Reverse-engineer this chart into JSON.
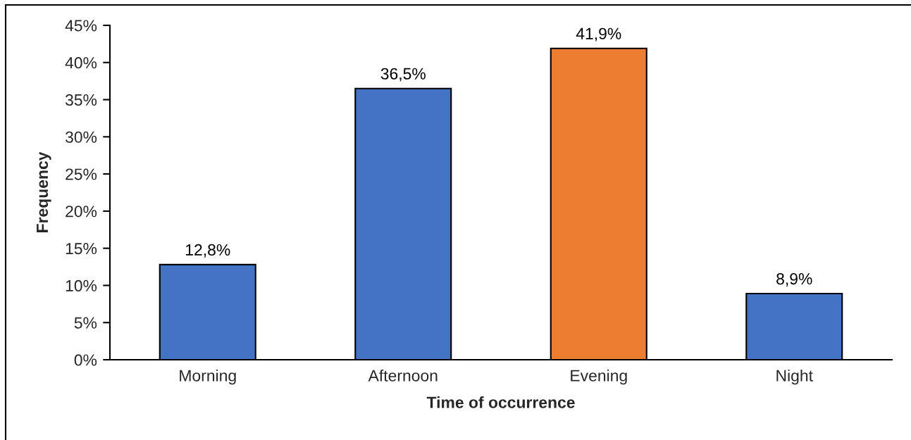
{
  "chart_data": {
    "type": "bar",
    "xlabel": "Time of occurrence",
    "ylabel": "Frequency",
    "categories": [
      "Morning",
      "Afternoon",
      "Evening",
      "Night"
    ],
    "values": [
      12.8,
      36.5,
      41.9,
      8.9
    ],
    "colors": [
      "#4472c4",
      "#4472c4",
      "#ed7d31",
      "#4472c4"
    ],
    "value_labels": [
      "12,8%",
      "36,5%",
      "41,9%",
      "8,9%"
    ],
    "ylim": [
      0,
      45
    ],
    "yticks": [
      {
        "value": 0,
        "label": "0%"
      },
      {
        "value": 5,
        "label": "5%"
      },
      {
        "value": 10,
        "label": "10%"
      },
      {
        "value": 15,
        "label": "15%"
      },
      {
        "value": 20,
        "label": "20%"
      },
      {
        "value": 25,
        "label": "25%"
      },
      {
        "value": 30,
        "label": "30%"
      },
      {
        "value": 35,
        "label": "35%"
      },
      {
        "value": 40,
        "label": "40%"
      },
      {
        "value": 45,
        "label": "45%"
      }
    ],
    "grid": false,
    "legend": false
  }
}
